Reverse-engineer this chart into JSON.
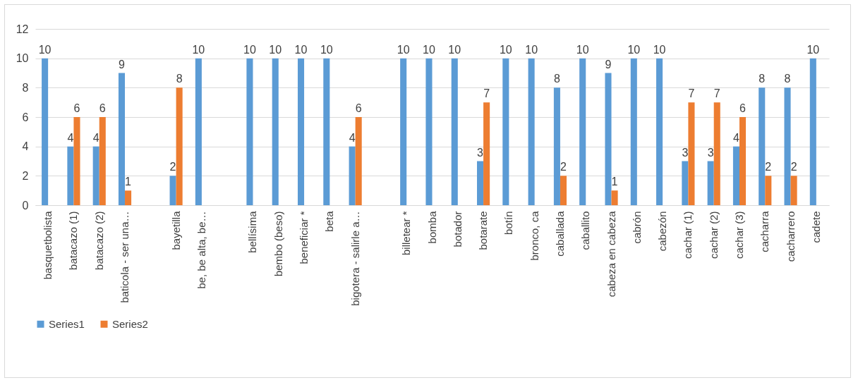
{
  "chart_data": {
    "type": "bar",
    "categories": [
      "basquetbolista",
      "batacazo (1)",
      "batacazo (2)",
      "baticola - ser una…",
      null,
      "bayetilla",
      "be, be alta, be…",
      null,
      "bellísima",
      "bembo (beso)",
      "beneficiar *",
      "beta",
      "bigotera - salirle a…",
      null,
      "billetear *",
      "bomba",
      "botador",
      "botarate",
      "botín",
      "bronco, ca",
      "caballada",
      "caballito",
      "cabeza en cabeza",
      "cabrón",
      "cabezón",
      "cachar (1)",
      "cachar (2)",
      "cachar (3)",
      "cacharra",
      "cacharrero",
      "cadete"
    ],
    "series": [
      {
        "name": "Series1",
        "color": "#5b9bd5",
        "values": [
          10,
          4,
          4,
          9,
          null,
          2,
          10,
          null,
          10,
          10,
          10,
          10,
          4,
          null,
          10,
          10,
          10,
          3,
          10,
          10,
          8,
          10,
          9,
          10,
          10,
          3,
          3,
          4,
          8,
          8,
          10
        ]
      },
      {
        "name": "Series2",
        "color": "#ed7d31",
        "values": [
          null,
          6,
          6,
          1,
          null,
          8,
          null,
          null,
          null,
          null,
          null,
          null,
          6,
          null,
          null,
          null,
          null,
          7,
          null,
          null,
          2,
          null,
          1,
          null,
          null,
          7,
          7,
          6,
          2,
          2,
          null
        ]
      }
    ],
    "ylim": [
      0,
      12
    ],
    "yticks": [
      0,
      2,
      4,
      6,
      8,
      10,
      12
    ],
    "grid": "y",
    "legend": "bottom",
    "data_labels": true
  }
}
